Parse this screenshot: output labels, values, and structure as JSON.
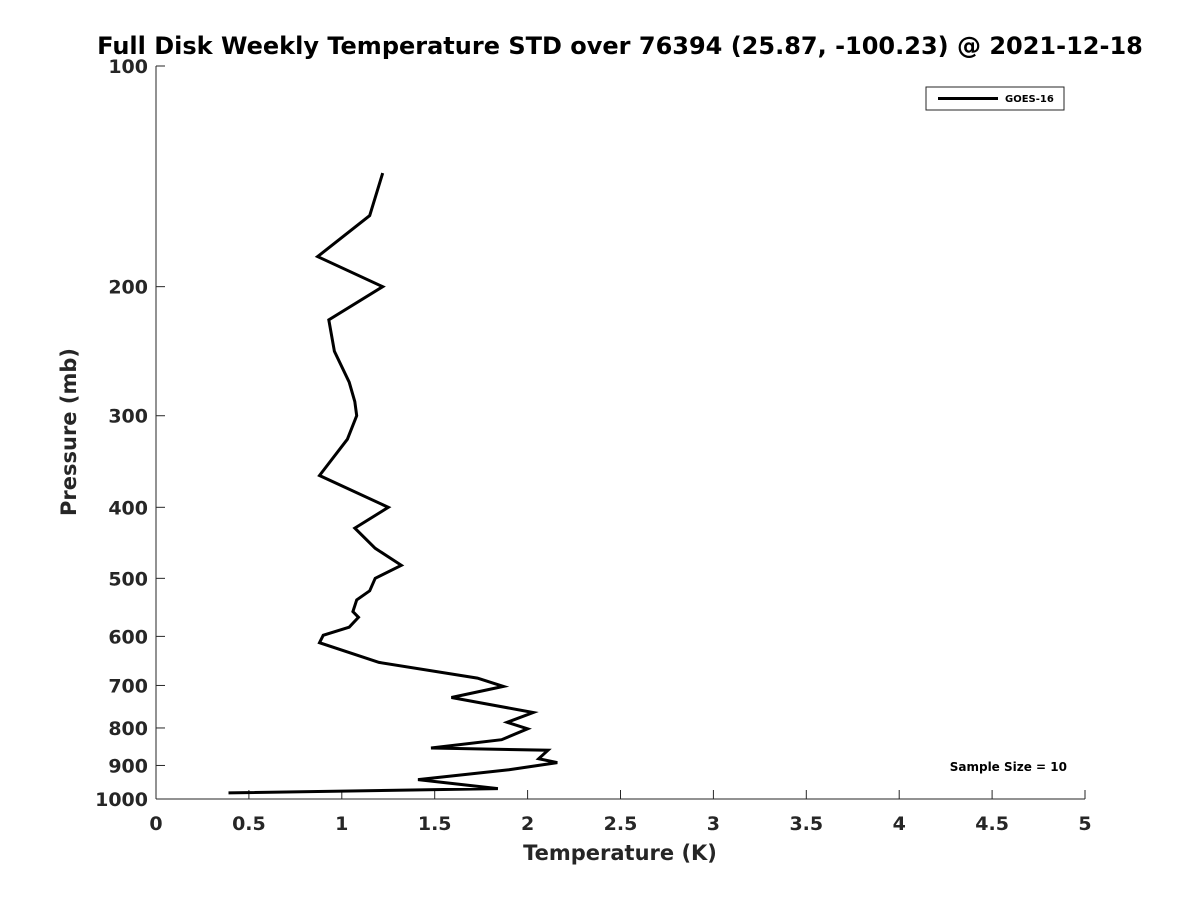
{
  "chart_data": {
    "type": "line",
    "title": "Full Disk Weekly Temperature STD over 76394 (25.87, -100.23) @ 2021-12-18",
    "xlabel": "Temperature (K)",
    "ylabel": "Pressure (mb)",
    "xlim": [
      0,
      5
    ],
    "ylim": [
      100,
      1000
    ],
    "y_scale": "log",
    "y_reversed": true,
    "x_ticks": [
      0,
      0.5,
      1,
      1.5,
      2,
      2.5,
      3,
      3.5,
      4,
      4.5,
      5
    ],
    "x_tick_labels": [
      "0",
      "0.5",
      "1",
      "1.5",
      "2",
      "2.5",
      "3",
      "3.5",
      "4",
      "4.5",
      "5"
    ],
    "y_ticks": [
      100,
      200,
      300,
      400,
      500,
      600,
      700,
      800,
      900,
      1000
    ],
    "y_tick_labels": [
      "100",
      "200",
      "300",
      "400",
      "500",
      "600",
      "700",
      "800",
      "900",
      "1000"
    ],
    "grid": false,
    "legend_position": "top-right",
    "series": [
      {
        "name": "GOES-16",
        "color": "#000000",
        "x": [
          1.22,
          1.15,
          0.87,
          1.22,
          0.93,
          0.96,
          1.04,
          1.07,
          1.08,
          1.03,
          0.88,
          1.25,
          1.07,
          1.18,
          1.32,
          1.18,
          1.15,
          1.08,
          1.06,
          1.09,
          1.04,
          0.9,
          0.88,
          1.2,
          1.73,
          1.87,
          1.59,
          2.03,
          1.89,
          2.0,
          1.86,
          1.48,
          2.11,
          2.06,
          2.16,
          1.9,
          1.41,
          1.84,
          0.39
        ],
        "y": [
          140,
          160,
          182,
          200,
          222,
          245,
          270,
          287,
          300,
          323,
          362,
          400,
          427,
          455,
          480,
          500,
          520,
          535,
          555,
          565,
          583,
          598,
          612,
          651,
          684,
          702,
          727,
          762,
          786,
          802,
          830,
          852,
          858,
          881,
          892,
          912,
          941,
          968,
          981
        ]
      }
    ],
    "annotation": "Sample Size = 10"
  }
}
